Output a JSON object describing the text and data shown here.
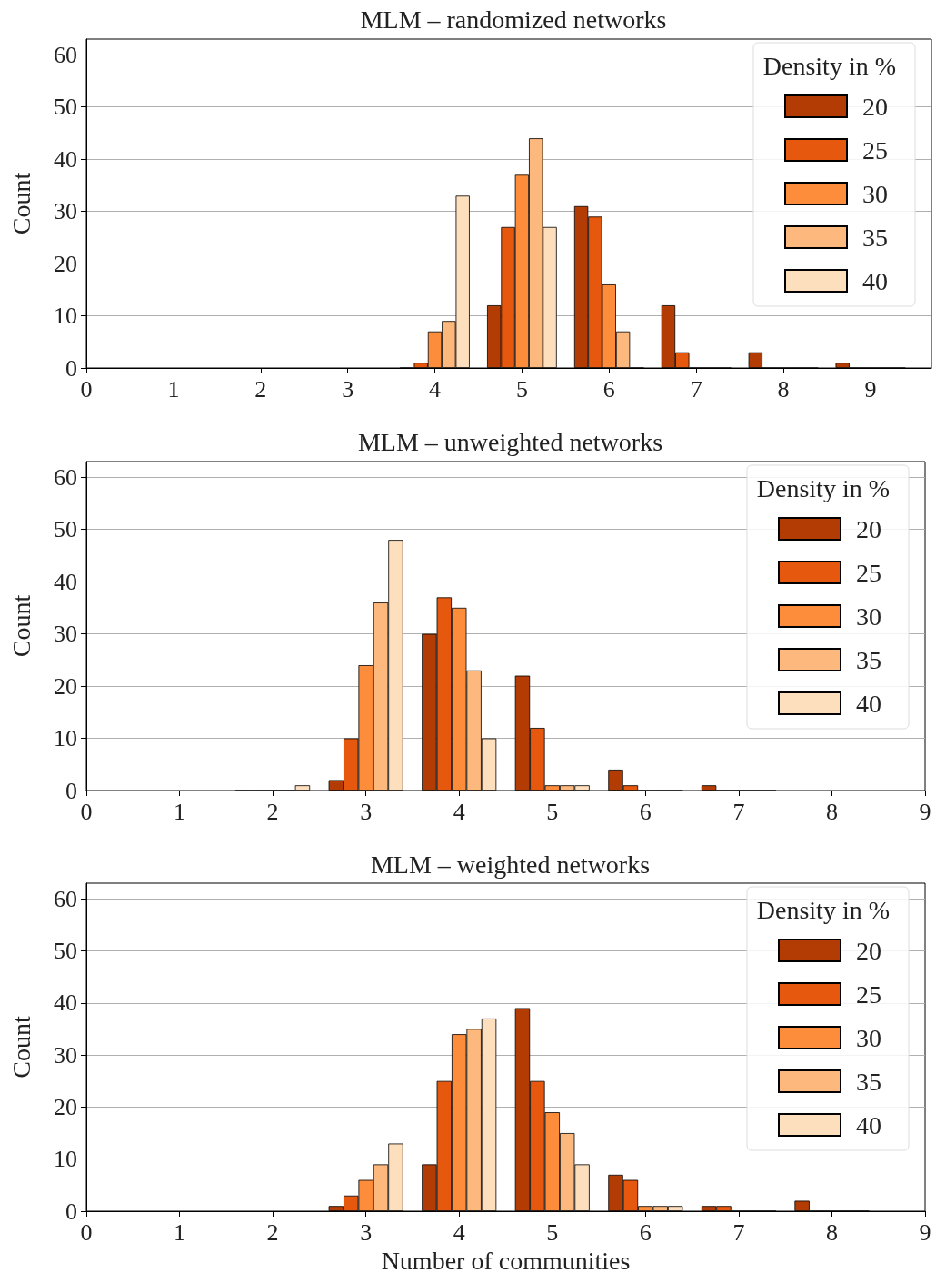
{
  "chart_data": [
    {
      "type": "bar",
      "title": "MLM – randomized networks",
      "ylabel": "Count",
      "legend_title": "Density in %",
      "legend": "top right",
      "grid": "y",
      "xlim": [
        0,
        9.7
      ],
      "xticks": [
        0,
        1,
        2,
        3,
        4,
        5,
        6,
        7,
        8,
        9
      ],
      "ylim": [
        0,
        63
      ],
      "yticks": [
        0,
        10,
        20,
        30,
        40,
        50,
        60
      ],
      "series": [
        {
          "name": "20",
          "color": "#b33c04",
          "x": [
            4,
            5,
            6,
            7,
            8,
            9
          ],
          "values": [
            0,
            12,
            31,
            12,
            3,
            1
          ]
        },
        {
          "name": "25",
          "color": "#e6580e",
          "x": [
            4,
            5,
            6,
            7,
            8,
            9
          ],
          "values": [
            1,
            27,
            29,
            3,
            0,
            0
          ]
        },
        {
          "name": "30",
          "color": "#fd8c3b",
          "x": [
            4,
            5,
            6,
            7,
            8,
            9
          ],
          "values": [
            7,
            37,
            16,
            0,
            0,
            0
          ]
        },
        {
          "name": "35",
          "color": "#fdb87d",
          "x": [
            4,
            5,
            6,
            7,
            8,
            9
          ],
          "values": [
            9,
            44,
            7,
            0,
            0,
            0
          ]
        },
        {
          "name": "40",
          "color": "#fddfbe",
          "x": [
            4,
            5,
            6,
            7,
            8,
            9
          ],
          "values": [
            33,
            27,
            0,
            0,
            0,
            0
          ]
        }
      ]
    },
    {
      "type": "bar",
      "title": "MLM – unweighted networks",
      "ylabel": "Count",
      "legend_title": "Density in %",
      "legend": "top right",
      "grid": "y",
      "xlim": [
        0,
        9
      ],
      "xticks": [
        0,
        1,
        2,
        3,
        4,
        5,
        6,
        7,
        8,
        9
      ],
      "ylim": [
        0,
        63
      ],
      "yticks": [
        0,
        10,
        20,
        30,
        40,
        50,
        60
      ],
      "series": [
        {
          "name": "20",
          "color": "#b33c04",
          "x": [
            2,
            3,
            4,
            5,
            6,
            7
          ],
          "values": [
            0,
            2,
            30,
            22,
            4,
            1
          ]
        },
        {
          "name": "25",
          "color": "#e6580e",
          "x": [
            2,
            3,
            4,
            5,
            6,
            7
          ],
          "values": [
            0,
            10,
            37,
            12,
            1,
            0
          ]
        },
        {
          "name": "30",
          "color": "#fd8c3b",
          "x": [
            2,
            3,
            4,
            5,
            6,
            7
          ],
          "values": [
            0,
            24,
            35,
            1,
            0,
            0
          ]
        },
        {
          "name": "35",
          "color": "#fdb87d",
          "x": [
            2,
            3,
            4,
            5,
            6,
            7
          ],
          "values": [
            0,
            36,
            23,
            1,
            0,
            0
          ]
        },
        {
          "name": "40",
          "color": "#fddfbe",
          "x": [
            2,
            3,
            4,
            5,
            6,
            7
          ],
          "values": [
            1,
            48,
            10,
            1,
            0,
            0
          ]
        }
      ]
    },
    {
      "type": "bar",
      "title": "MLM – weighted networks",
      "xlabel": "Number of communities",
      "ylabel": "Count",
      "legend_title": "Density in %",
      "legend": "top right",
      "grid": "y",
      "xlim": [
        0,
        9
      ],
      "xticks": [
        0,
        1,
        2,
        3,
        4,
        5,
        6,
        7,
        8,
        9
      ],
      "ylim": [
        0,
        63
      ],
      "yticks": [
        0,
        10,
        20,
        30,
        40,
        50,
        60
      ],
      "series": [
        {
          "name": "20",
          "color": "#b33c04",
          "x": [
            3,
            4,
            5,
            6,
            7,
            8
          ],
          "values": [
            1,
            9,
            39,
            7,
            1,
            2
          ]
        },
        {
          "name": "25",
          "color": "#e6580e",
          "x": [
            3,
            4,
            5,
            6,
            7,
            8
          ],
          "values": [
            3,
            25,
            25,
            6,
            1,
            0
          ]
        },
        {
          "name": "30",
          "color": "#fd8c3b",
          "x": [
            3,
            4,
            5,
            6,
            7,
            8
          ],
          "values": [
            6,
            34,
            19,
            1,
            0,
            0
          ]
        },
        {
          "name": "35",
          "color": "#fdb87d",
          "x": [
            3,
            4,
            5,
            6,
            7,
            8
          ],
          "values": [
            9,
            35,
            15,
            1,
            0,
            0
          ]
        },
        {
          "name": "40",
          "color": "#fddfbe",
          "x": [
            3,
            4,
            5,
            6,
            7,
            8
          ],
          "values": [
            13,
            37,
            9,
            1,
            0,
            0
          ]
        }
      ]
    }
  ]
}
